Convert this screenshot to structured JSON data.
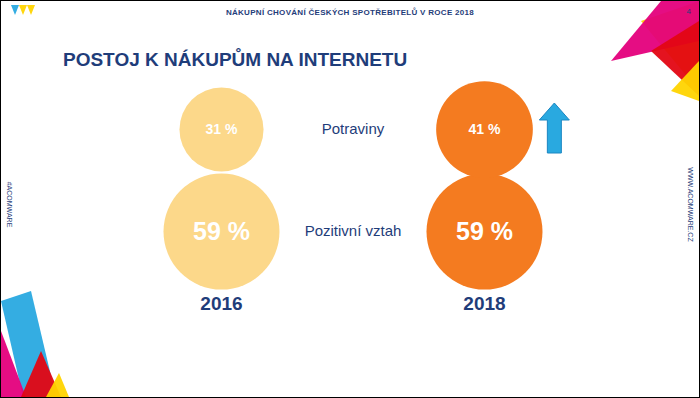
{
  "chart_data": {
    "type": "bubble",
    "title": "POSTOJ K NÁKUPŮM NA INTERNETU",
    "subtitle": "NÁKUPNÍ CHOVÁNÍ ČESKÝCH SPOTŘEBITELŮ V ROCE 2018",
    "annotations": [
      "4",
      "#ACOMWARE",
      "WWW.ACOMWARE.CZ"
    ],
    "categories": [
      "Pozitivní vztah",
      "Potraviny"
    ],
    "series": [
      {
        "name": "2016",
        "color": "#fcd88a",
        "values": [
          59,
          31
        ],
        "value_labels": [
          "59 %",
          "31 %"
        ]
      },
      {
        "name": "2018",
        "color": "#f47b20",
        "values": [
          59,
          41
        ],
        "value_labels": [
          "59 %",
          "41 %"
        ]
      }
    ],
    "data_labels": true
  }
}
